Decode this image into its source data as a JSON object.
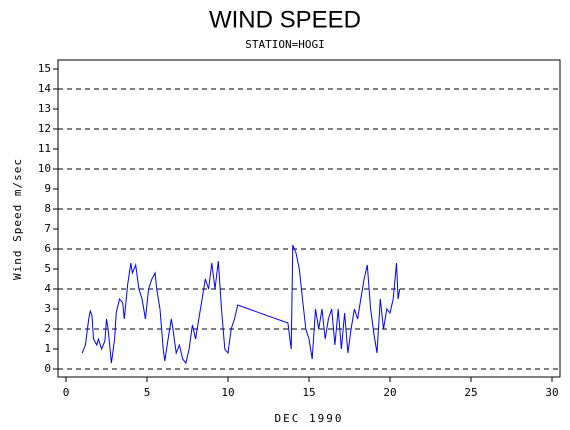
{
  "chart_data": {
    "type": "line",
    "title": "WIND SPEED",
    "subtitle": "STATION=HOGI",
    "x_label": "DEC 1990",
    "y_label": "Wind Speed m/sec",
    "xlim": [
      0,
      30
    ],
    "xticks": [
      0,
      5,
      10,
      15,
      20,
      25,
      30
    ],
    "ylim": [
      0,
      15
    ],
    "yticks": [
      0,
      1,
      2,
      3,
      4,
      5,
      6,
      7,
      8,
      9,
      10,
      11,
      12,
      13,
      14,
      15
    ],
    "grid_lines": [
      0,
      2,
      4,
      6,
      8,
      10,
      12,
      14
    ],
    "series": [
      {
        "name": "Wind Speed",
        "color": "#0000ff",
        "x": [
          1.0,
          1.2,
          1.4,
          1.5,
          1.6,
          1.7,
          1.9,
          2.0,
          2.2,
          2.4,
          2.5,
          2.6,
          2.8,
          3.0,
          3.1,
          3.3,
          3.5,
          3.6,
          3.8,
          4.0,
          4.1,
          4.3,
          4.5,
          4.7,
          4.9,
          5.1,
          5.3,
          5.5,
          5.6,
          5.8,
          5.9,
          6.0,
          6.1,
          6.3,
          6.5,
          6.6,
          6.8,
          7.0,
          7.2,
          7.4,
          7.6,
          7.8,
          8.0,
          8.2,
          8.4,
          8.6,
          8.8,
          9.0,
          9.2,
          9.4,
          9.6,
          9.8,
          10.0,
          10.2,
          10.4,
          10.6,
          13.7,
          13.9,
          14.0,
          14.2,
          14.4,
          14.6,
          14.8,
          15.0,
          15.2,
          15.4,
          15.6,
          15.8,
          16.0,
          16.2,
          16.4,
          16.6,
          16.8,
          17.0,
          17.2,
          17.4,
          17.6,
          17.8,
          18.0,
          18.2,
          18.4,
          18.6,
          18.8,
          19.0,
          19.2,
          19.4,
          19.6,
          19.8,
          20.0,
          20.2,
          20.4,
          20.5,
          20.6
        ],
        "values": [
          0.8,
          1.2,
          2.5,
          2.9,
          2.7,
          1.5,
          1.2,
          1.5,
          1.0,
          1.4,
          2.5,
          2.0,
          0.3,
          1.5,
          2.8,
          3.5,
          3.3,
          2.5,
          4.2,
          5.3,
          4.8,
          5.2,
          4.0,
          3.5,
          2.5,
          4.0,
          4.5,
          4.8,
          4.0,
          3.0,
          2.0,
          1.0,
          0.4,
          1.5,
          2.5,
          2.0,
          0.8,
          1.2,
          0.5,
          0.3,
          1.0,
          2.2,
          1.5,
          2.5,
          3.5,
          4.5,
          4.0,
          5.3,
          4.0,
          5.4,
          3.0,
          1.0,
          0.8,
          2.0,
          2.5,
          3.2,
          2.3,
          1.0,
          6.2,
          5.8,
          5.0,
          3.5,
          2.0,
          1.5,
          0.5,
          3.0,
          2.0,
          3.0,
          1.5,
          2.5,
          3.0,
          1.2,
          3.0,
          1.0,
          2.8,
          0.8,
          2.0,
          3.0,
          2.5,
          3.5,
          4.5,
          5.2,
          3.0,
          1.8,
          0.8,
          3.5,
          2.0,
          3.0,
          2.8,
          3.5,
          5.3,
          3.5,
          4.0
        ]
      }
    ]
  }
}
